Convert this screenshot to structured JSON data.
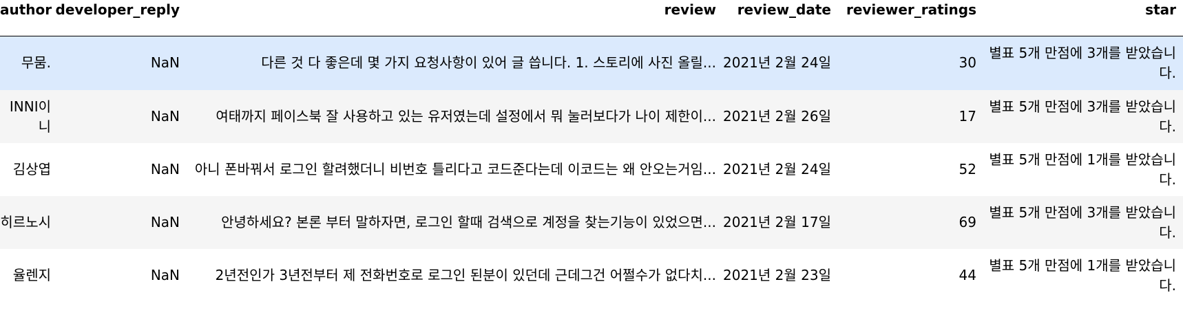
{
  "columns": [
    "author",
    "developer_reply",
    "review",
    "review_date",
    "reviewer_ratings",
    "star"
  ],
  "rows": [
    {
      "author": "무뭄.",
      "developer_reply": "NaN",
      "review": "다른 것 다 좋은데 몇 가지 요청사항이 있어 글 씁니다. 1. 스토리에 사진 올릴...",
      "review_date": "2021년 2월 24일",
      "reviewer_ratings": "30",
      "star": "별표 5개 만점에 3개를 받았습니다."
    },
    {
      "author": "INNI이니",
      "developer_reply": "NaN",
      "review": "여태까지 페이스북 잘 사용하고 있는 유저였는데 설정에서 뭐 눌러보다가 나이 제한이...",
      "review_date": "2021년 2월 26일",
      "reviewer_ratings": "17",
      "star": "별표 5개 만점에 3개를 받았습니다."
    },
    {
      "author": "김상엽",
      "developer_reply": "NaN",
      "review": "아니 폰바꿔서 로그인 할려했더니 비번호 틀리다고 코드준다는데 이코드는 왜 안오는거임...",
      "review_date": "2021년 2월 24일",
      "reviewer_ratings": "52",
      "star": "별표 5개 만점에 1개를 받았습니다."
    },
    {
      "author": "히르노시",
      "developer_reply": "NaN",
      "review": "안녕하세요? 본론 부터 말하자면, 로그인 할때 검색으로 계정을 찾는기능이 있었으면...",
      "review_date": "2021년 2월 17일",
      "reviewer_ratings": "69",
      "star": "별표 5개 만점에 3개를 받았습니다."
    },
    {
      "author": "율렌지",
      "developer_reply": "NaN",
      "review": "2년전인가 3년전부터 제 전화번호로 로그인 된분이 있던데 근데그건 어쩔수가 없다치...",
      "review_date": "2021년 2월 23일",
      "reviewer_ratings": "44",
      "star": "별표 5개 만점에 1개를 받았습니다."
    }
  ]
}
